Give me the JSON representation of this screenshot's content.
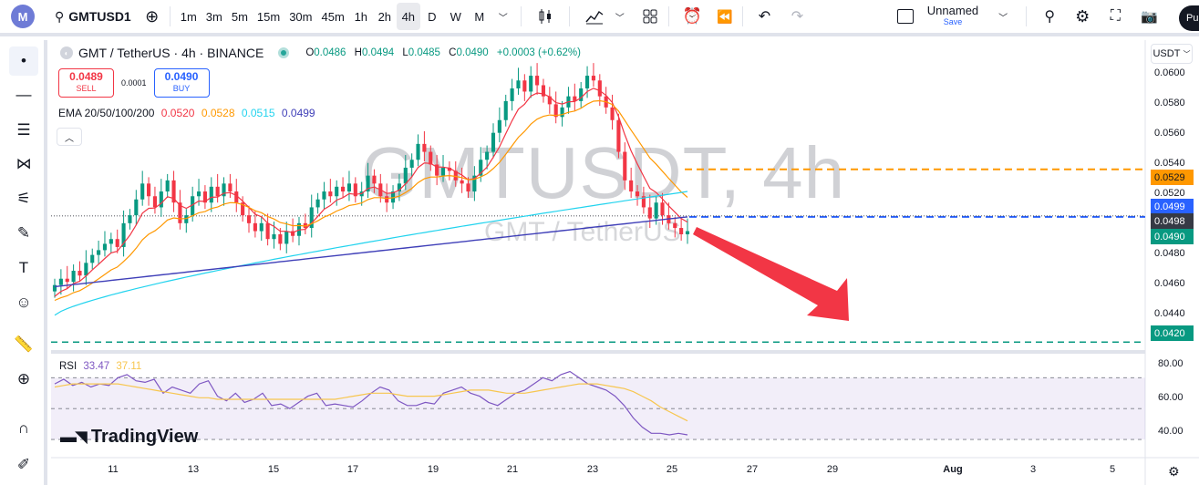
{
  "toolbar": {
    "logo": "M",
    "symbol": "GMTUSD1",
    "intervals": [
      "1m",
      "3m",
      "5m",
      "15m",
      "30m",
      "45m",
      "1h",
      "2h",
      "4h",
      "D",
      "W",
      "M"
    ],
    "active_interval": "4h",
    "layout_name": "Unnamed",
    "save_label": "Save",
    "publish": "Pu"
  },
  "legend": {
    "title": "GMT / TetherUS · 4h · BINANCE",
    "O": "0.0486",
    "H": "0.0494",
    "L": "0.0485",
    "C": "0.0490",
    "change": "+0.0003 (+0.62%)"
  },
  "trade": {
    "sell_price": "0.0489",
    "sell_label": "SELL",
    "spread": "0.0001",
    "buy_price": "0.0490",
    "buy_label": "BUY"
  },
  "ema": {
    "label": "EMA 20/50/100/200",
    "v20": "0.0520",
    "v50": "0.0528",
    "v100": "0.0515",
    "v200": "0.0499",
    "c20": "#f23645",
    "c50": "#ff9800",
    "c100": "#22d3ee",
    "c200": "#3f3fb8"
  },
  "rsi": {
    "label": "RSI",
    "v1": "33.47",
    "v2": "37.11"
  },
  "currency": "USDT",
  "watermark": {
    "main": "GMTUSDT, 4h",
    "sub": "GMT / TetherUS"
  },
  "branding": "TradingView",
  "price_axis": [
    "0.0600",
    "0.0580",
    "0.0560",
    "0.0540",
    "0.0520",
    "0.0500",
    "0.0480",
    "0.0460",
    "0.0440"
  ],
  "price_labels": {
    "orange": "0.0529",
    "blue": "0.0499",
    "last": "0.0498",
    "current": "0.0490",
    "green": "0.0420"
  },
  "rsi_axis": [
    "80.00",
    "60.00",
    "40.00"
  ],
  "time_axis": [
    "11",
    "13",
    "15",
    "17",
    "19",
    "21",
    "23",
    "25",
    "27",
    "29",
    "Aug",
    "3",
    "5"
  ],
  "chart_data": {
    "type": "candlestick",
    "interval": "4h",
    "ylim": [
      0.0415,
      0.0607
    ],
    "close_series": [
      0.0456,
      0.046,
      0.0458,
      0.0465,
      0.0462,
      0.047,
      0.0475,
      0.0478,
      0.0482,
      0.0485,
      0.048,
      0.0495,
      0.05,
      0.051,
      0.052,
      0.0512,
      0.0505,
      0.0515,
      0.0522,
      0.0508,
      0.0495,
      0.05,
      0.0512,
      0.0515,
      0.0508,
      0.0518,
      0.0512,
      0.052,
      0.0515,
      0.0508,
      0.05,
      0.0495,
      0.049,
      0.0495,
      0.0485,
      0.0488,
      0.0482,
      0.049,
      0.0487,
      0.0495,
      0.0492,
      0.0505,
      0.051,
      0.0515,
      0.0512,
      0.0518,
      0.0515,
      0.052,
      0.0512,
      0.0515,
      0.0525,
      0.052,
      0.0512,
      0.0508,
      0.0515,
      0.052,
      0.053,
      0.0535,
      0.0545,
      0.054,
      0.0532,
      0.0525,
      0.053,
      0.0528,
      0.0522,
      0.052,
      0.0515,
      0.0525,
      0.0535,
      0.054,
      0.0552,
      0.056,
      0.0572,
      0.058,
      0.0585,
      0.0578,
      0.0588,
      0.0582,
      0.0575,
      0.057,
      0.0562,
      0.0568,
      0.0575,
      0.0572,
      0.058,
      0.0588,
      0.0585,
      0.0575,
      0.0568,
      0.056,
      0.054,
      0.0522,
      0.0515,
      0.0512,
      0.0505,
      0.0498,
      0.0508,
      0.05,
      0.0495,
      0.0492,
      0.0488,
      0.049
    ],
    "rsi_series": [
      66,
      69,
      65,
      67,
      64,
      66,
      65,
      70,
      72,
      68,
      67,
      69,
      60,
      64,
      62,
      60,
      66,
      68,
      58,
      55,
      60,
      54,
      56,
      60,
      52,
      53,
      50,
      54,
      58,
      60,
      52,
      53,
      52,
      51,
      55,
      60,
      64,
      62,
      55,
      52,
      52,
      54,
      53,
      60,
      62,
      64,
      60,
      58,
      54,
      52,
      56,
      60,
      62,
      66,
      70,
      68,
      72,
      74,
      70,
      66,
      64,
      62,
      58,
      52,
      44,
      38,
      34,
      34,
      33,
      34,
      33
    ],
    "rsi_ma_series": [
      64,
      65,
      66,
      66,
      66,
      66,
      66,
      66,
      65,
      64,
      63,
      62,
      61,
      60,
      59,
      58,
      57,
      57,
      56,
      56,
      56,
      56,
      56,
      56,
      56,
      56,
      56,
      56,
      56,
      56,
      56,
      56,
      57,
      58,
      59,
      60,
      60,
      60,
      59,
      58,
      58,
      58,
      58,
      59,
      60,
      61,
      62,
      62,
      62,
      61,
      60,
      60,
      60,
      61,
      62,
      63,
      64,
      65,
      66,
      66,
      66,
      65,
      64,
      63,
      61,
      58,
      55,
      51,
      48,
      45,
      42
    ],
    "levels": {
      "resistance": 0.0529,
      "ema200": 0.0499,
      "support": 0.042
    },
    "rsi_levels": [
      70,
      50,
      30
    ],
    "rsi_ylim": [
      20,
      82
    ]
  }
}
